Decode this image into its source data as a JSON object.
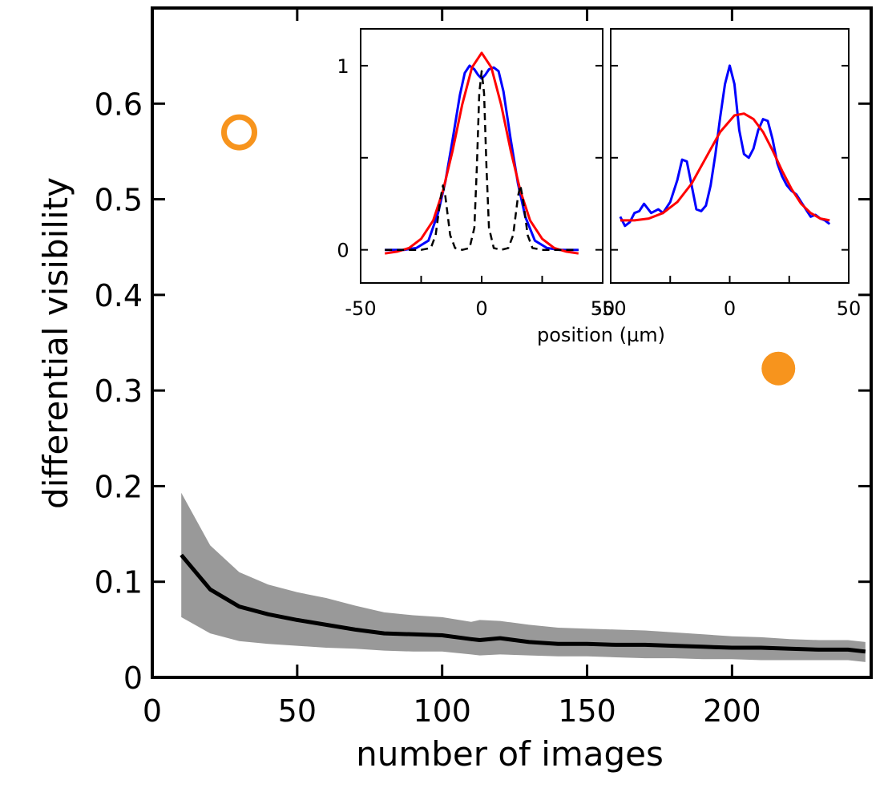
{
  "chart_data": [
    {
      "type": "line",
      "title": "",
      "xlabel": "number of images",
      "ylabel": "differential visibility",
      "xlim": [
        0,
        248
      ],
      "ylim": [
        0,
        0.7
      ],
      "xticks": [
        "0",
        "50",
        "100",
        "150",
        "200"
      ],
      "yticks": [
        "0",
        "0.1",
        "0.2",
        "0.3",
        "0.4",
        "0.5",
        "0.6"
      ],
      "grid": false,
      "colors": {
        "mean": "#000000",
        "band": "#999999",
        "points": "#f7941d"
      },
      "series": [
        {
          "name": "mean",
          "x": [
            10,
            20,
            30,
            40,
            50,
            60,
            70,
            80,
            90,
            100,
            110,
            113,
            120,
            130,
            140,
            150,
            160,
            170,
            180,
            190,
            200,
            210,
            220,
            230,
            240,
            246
          ],
          "y": [
            0.128,
            0.092,
            0.074,
            0.066,
            0.06,
            0.055,
            0.05,
            0.046,
            0.045,
            0.044,
            0.04,
            0.039,
            0.041,
            0.037,
            0.035,
            0.035,
            0.034,
            0.034,
            0.033,
            0.032,
            0.031,
            0.031,
            0.03,
            0.029,
            0.029,
            0.027
          ]
        },
        {
          "name": "band",
          "type": "area",
          "x": [
            10,
            20,
            30,
            40,
            50,
            60,
            70,
            80,
            90,
            100,
            110,
            113,
            120,
            130,
            140,
            150,
            160,
            170,
            180,
            190,
            200,
            210,
            220,
            230,
            240,
            246
          ],
          "upper": [
            0.193,
            0.138,
            0.11,
            0.097,
            0.089,
            0.083,
            0.075,
            0.068,
            0.065,
            0.063,
            0.058,
            0.06,
            0.059,
            0.055,
            0.052,
            0.051,
            0.05,
            0.049,
            0.047,
            0.045,
            0.043,
            0.042,
            0.04,
            0.039,
            0.039,
            0.037
          ],
          "lower": [
            0.063,
            0.046,
            0.038,
            0.035,
            0.033,
            0.031,
            0.03,
            0.028,
            0.027,
            0.027,
            0.024,
            0.023,
            0.024,
            0.023,
            0.022,
            0.022,
            0.021,
            0.02,
            0.02,
            0.019,
            0.019,
            0.018,
            0.018,
            0.018,
            0.018,
            0.016
          ]
        },
        {
          "name": "open circle",
          "type": "scatter",
          "x": [
            30
          ],
          "y": [
            0.57
          ],
          "marker": "open"
        },
        {
          "name": "filled circle",
          "type": "scatter",
          "x": [
            216
          ],
          "y": [
            0.323
          ],
          "marker": "filled"
        }
      ]
    },
    {
      "type": "line",
      "xlabel": "position (µm)",
      "xlim": [
        -50,
        50
      ],
      "ylim": [
        -0.18,
        1.2
      ],
      "xticks": [
        "-50",
        "0",
        "50"
      ],
      "yticks": [
        "0",
        "1"
      ],
      "series": [
        {
          "name": "blue",
          "color": "#0000ff",
          "x": [
            -40,
            -32,
            -27,
            -22,
            -18,
            -15,
            -12,
            -9,
            -7,
            -5,
            -3,
            -1.5,
            0,
            1.5,
            3,
            5,
            7,
            9,
            12,
            15,
            18,
            22,
            27,
            32,
            40
          ],
          "y": [
            0,
            0,
            0.01,
            0.05,
            0.2,
            0.37,
            0.6,
            0.84,
            0.96,
            1.0,
            0.98,
            0.95,
            0.93,
            0.95,
            0.98,
            0.99,
            0.97,
            0.86,
            0.6,
            0.36,
            0.18,
            0.05,
            0.01,
            0,
            0
          ]
        },
        {
          "name": "red",
          "color": "#ff0000",
          "x": [
            -40,
            -35,
            -30,
            -25,
            -20,
            -16,
            -12,
            -8,
            -4,
            0,
            4,
            8,
            12,
            16,
            20,
            25,
            30,
            35,
            40
          ],
          "y": [
            -0.02,
            -0.01,
            0.01,
            0.06,
            0.16,
            0.32,
            0.54,
            0.79,
            0.99,
            1.07,
            0.99,
            0.79,
            0.54,
            0.32,
            0.16,
            0.06,
            0.01,
            -0.01,
            -0.02
          ]
        },
        {
          "name": "dashed",
          "color": "#000000",
          "x": [
            -40,
            -25,
            -21,
            -19,
            -17,
            -16,
            -15,
            -13,
            -11,
            -8,
            -5,
            -3,
            -2,
            -1,
            0,
            1,
            2,
            3,
            5,
            8,
            11,
            13,
            15,
            16,
            17,
            19,
            21,
            25,
            40
          ],
          "y": [
            0,
            0,
            0.01,
            0.08,
            0.28,
            0.35,
            0.29,
            0.08,
            0.01,
            0,
            0.01,
            0.12,
            0.45,
            0.85,
            0.97,
            0.85,
            0.45,
            0.12,
            0.01,
            0,
            0.01,
            0.08,
            0.29,
            0.35,
            0.28,
            0.08,
            0.01,
            0,
            0
          ]
        }
      ]
    },
    {
      "type": "line",
      "xlim": [
        -50,
        50
      ],
      "ylim": [
        -0.18,
        1.2
      ],
      "xticks": [
        "-50",
        "0",
        "50"
      ],
      "series": [
        {
          "name": "blue",
          "color": "#0000ff",
          "x": [
            -46,
            -44,
            -42,
            -40,
            -38,
            -36,
            -33,
            -30,
            -28,
            -25,
            -22,
            -20,
            -18,
            -16,
            -14,
            -12,
            -10,
            -8,
            -6,
            -4,
            -2,
            0,
            2,
            4,
            6,
            8,
            10,
            12,
            14,
            16,
            18,
            20,
            22,
            24,
            26,
            28,
            30,
            32,
            34,
            36,
            38,
            40,
            42
          ],
          "y": [
            0.18,
            0.13,
            0.15,
            0.2,
            0.21,
            0.25,
            0.2,
            0.22,
            0.2,
            0.26,
            0.38,
            0.49,
            0.48,
            0.35,
            0.22,
            0.21,
            0.24,
            0.35,
            0.52,
            0.72,
            0.9,
            1.0,
            0.9,
            0.65,
            0.52,
            0.5,
            0.55,
            0.65,
            0.71,
            0.7,
            0.6,
            0.47,
            0.4,
            0.35,
            0.32,
            0.3,
            0.26,
            0.22,
            0.18,
            0.19,
            0.17,
            0.16,
            0.14
          ]
        },
        {
          "name": "red",
          "color": "#ff0000",
          "x": [
            -46,
            -40,
            -34,
            -28,
            -22,
            -16,
            -10,
            -4,
            2,
            6,
            10,
            14,
            18,
            22,
            26,
            30,
            34,
            38,
            42
          ],
          "y": [
            0.16,
            0.16,
            0.17,
            0.2,
            0.26,
            0.36,
            0.5,
            0.64,
            0.73,
            0.74,
            0.71,
            0.64,
            0.54,
            0.43,
            0.33,
            0.25,
            0.2,
            0.17,
            0.16
          ]
        }
      ]
    }
  ]
}
